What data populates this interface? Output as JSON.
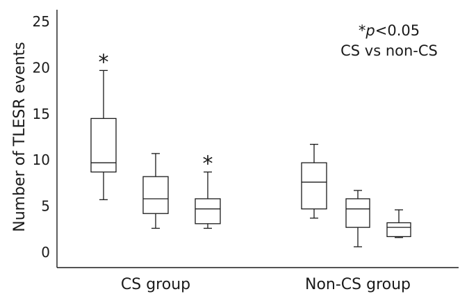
{
  "chart_data": {
    "type": "box",
    "ylabel": "Number of TLESR events",
    "ylim": [
      0,
      25
    ],
    "yticks": [
      "0",
      "5",
      "10",
      "15",
      "20",
      "25"
    ],
    "groups": [
      {
        "label": "CS group",
        "boxes": [
          {
            "whisker_low": 5.7,
            "q1": 8.7,
            "median": 9.7,
            "q3": 14.5,
            "whisker_high": 19.7,
            "significant": true
          },
          {
            "whisker_low": 2.6,
            "q1": 4.2,
            "median": 5.8,
            "q3": 8.2,
            "whisker_high": 10.7,
            "significant": false
          },
          {
            "whisker_low": 2.6,
            "q1": 3.1,
            "median": 4.7,
            "q3": 5.8,
            "whisker_high": 8.7,
            "significant": true
          }
        ]
      },
      {
        "label": "Non-CS group",
        "boxes": [
          {
            "whisker_low": 3.7,
            "q1": 4.7,
            "median": 7.6,
            "q3": 9.7,
            "whisker_high": 11.7,
            "significant": false
          },
          {
            "whisker_low": 0.6,
            "q1": 2.7,
            "median": 4.7,
            "q3": 5.8,
            "whisker_high": 6.7,
            "significant": false
          },
          {
            "whisker_low": 1.6,
            "q1": 1.7,
            "median": 2.7,
            "q3": 3.2,
            "whisker_high": 4.6,
            "significant": false
          }
        ]
      }
    ],
    "significance_marker": "*",
    "annotation": {
      "prefix": "*",
      "p_symbol": "p",
      "threshold": "<0.05",
      "comparison": "CS vs non-CS"
    },
    "grid": false,
    "legend": "none"
  }
}
